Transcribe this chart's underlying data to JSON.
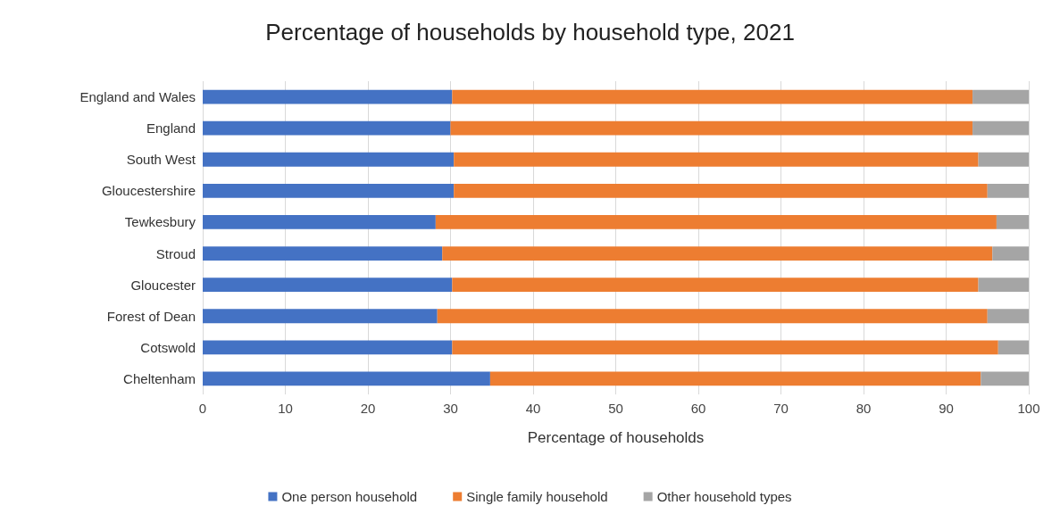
{
  "chart_data": {
    "type": "bar",
    "orientation": "horizontal",
    "stacked": true,
    "title": "Percentage of households by household type, 2021",
    "xlabel": "Percentage of households",
    "categories": [
      "England and Wales",
      "England",
      "South West",
      "Gloucestershire",
      "Tewkesbury",
      "Stroud",
      "Gloucester",
      "Forest of Dean",
      "Cotswold",
      "Cheltenham"
    ],
    "series": [
      {
        "name": "One person household",
        "color": "#4472c4",
        "values": [
          30.2,
          30.0,
          30.4,
          30.4,
          28.2,
          29.0,
          30.2,
          28.4,
          30.2,
          34.8
        ]
      },
      {
        "name": "Single family household",
        "color": "#ed7d31",
        "values": [
          63.0,
          63.2,
          63.5,
          64.6,
          67.9,
          66.6,
          63.7,
          66.6,
          66.1,
          59.4
        ]
      },
      {
        "name": "Other household types",
        "color": "#a5a5a5",
        "values": [
          6.8,
          6.8,
          6.1,
          5.0,
          3.9,
          4.4,
          6.1,
          5.0,
          3.7,
          5.8
        ]
      }
    ],
    "xlim": [
      0,
      100
    ],
    "xticks": [
      0,
      10,
      20,
      30,
      40,
      50,
      60,
      70,
      80,
      90,
      100
    ],
    "grid": "x",
    "legend": "bottom"
  }
}
